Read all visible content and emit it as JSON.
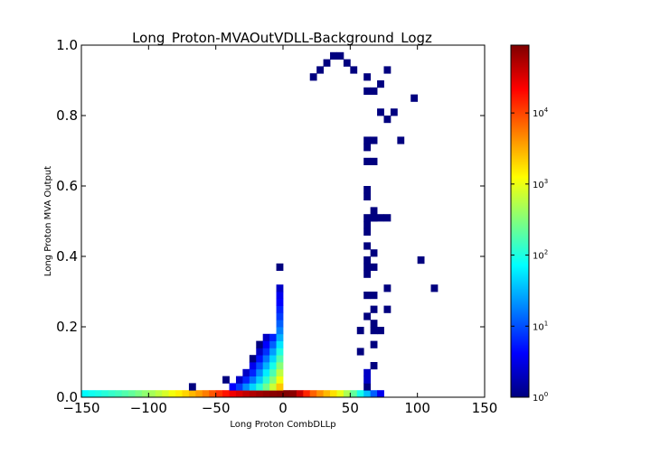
{
  "chart_data": {
    "type": "heatmap",
    "title": "Long_Proton-MVAOutVDLL-Background_Logz",
    "xlabel": "Long Proton CombDLLp",
    "ylabel": "Long Proton MVA Output",
    "xlim": [
      -150,
      150
    ],
    "ylim": [
      0,
      1.0
    ],
    "x_ticks": [
      "−150",
      "−100",
      "−50",
      "0",
      "50",
      "100",
      "150"
    ],
    "y_ticks": [
      "0.0",
      "0.2",
      "0.4",
      "0.6",
      "0.8",
      "1.0"
    ],
    "colorscale": "jet",
    "zscale": "log",
    "zlim": [
      1,
      90000
    ],
    "colorbar_ticks": [
      {
        "base": "10",
        "exp": "0",
        "value": 1
      },
      {
        "base": "10",
        "exp": "1",
        "value": 10
      },
      {
        "base": "10",
        "exp": "2",
        "value": 100
      },
      {
        "base": "10",
        "exp": "3",
        "value": 1000
      },
      {
        "base": "10",
        "exp": "4",
        "value": 10000
      }
    ],
    "bins": {
      "x_width": 5,
      "y_width": 0.02
    },
    "cells": [
      [
        -150,
        0,
        70
      ],
      [
        -145,
        0,
        85
      ],
      [
        -140,
        0,
        95
      ],
      [
        -135,
        0,
        110
      ],
      [
        -130,
        0,
        130
      ],
      [
        -125,
        0,
        150
      ],
      [
        -120,
        0,
        180
      ],
      [
        -115,
        0,
        220
      ],
      [
        -110,
        0,
        280
      ],
      [
        -105,
        0,
        360
      ],
      [
        -100,
        0,
        460
      ],
      [
        -95,
        0,
        600
      ],
      [
        -90,
        0,
        800
      ],
      [
        -85,
        0,
        1100
      ],
      [
        -80,
        0,
        1500
      ],
      [
        -75,
        0,
        2100
      ],
      [
        -70,
        0,
        3000
      ],
      [
        -65,
        0,
        4200
      ],
      [
        -60,
        0,
        6000
      ],
      [
        -55,
        0,
        9000
      ],
      [
        -50,
        0,
        13000
      ],
      [
        -45,
        0,
        18000
      ],
      [
        -40,
        0,
        25000
      ],
      [
        -35,
        0,
        33000
      ],
      [
        -30,
        0,
        42000
      ],
      [
        -25,
        0,
        52000
      ],
      [
        -20,
        0,
        62000
      ],
      [
        -15,
        0,
        72000
      ],
      [
        -10,
        0,
        80000
      ],
      [
        -5,
        0,
        85000
      ],
      [
        0,
        0,
        88000
      ],
      [
        5,
        0,
        80000
      ],
      [
        10,
        0,
        40000
      ],
      [
        15,
        0,
        15000
      ],
      [
        20,
        0,
        8000
      ],
      [
        25,
        0,
        5000
      ],
      [
        30,
        0,
        3000
      ],
      [
        35,
        0,
        1800
      ],
      [
        40,
        0,
        1000
      ],
      [
        45,
        0,
        500
      ],
      [
        50,
        0,
        220
      ],
      [
        55,
        0,
        90
      ],
      [
        60,
        0,
        35
      ],
      [
        65,
        0,
        12
      ],
      [
        70,
        0,
        3
      ],
      [
        -70,
        0.02,
        1
      ],
      [
        -45,
        0.04,
        1
      ],
      [
        -40,
        0.02,
        4
      ],
      [
        -35,
        0.02,
        8
      ],
      [
        -35,
        0.04,
        2
      ],
      [
        -30,
        0.02,
        20
      ],
      [
        -30,
        0.04,
        6
      ],
      [
        -30,
        0.06,
        2
      ],
      [
        -25,
        0.02,
        45
      ],
      [
        -25,
        0.04,
        15
      ],
      [
        -25,
        0.06,
        6
      ],
      [
        -25,
        0.08,
        3
      ],
      [
        -25,
        0.1,
        1
      ],
      [
        -20,
        0.02,
        110
      ],
      [
        -20,
        0.04,
        40
      ],
      [
        -20,
        0.06,
        20
      ],
      [
        -20,
        0.08,
        10
      ],
      [
        -20,
        0.1,
        5
      ],
      [
        -20,
        0.12,
        2
      ],
      [
        -20,
        0.14,
        1
      ],
      [
        -15,
        0.02,
        260
      ],
      [
        -15,
        0.04,
        120
      ],
      [
        -15,
        0.06,
        60
      ],
      [
        -15,
        0.08,
        30
      ],
      [
        -15,
        0.1,
        15
      ],
      [
        -15,
        0.12,
        7
      ],
      [
        -15,
        0.14,
        4
      ],
      [
        -15,
        0.16,
        2
      ],
      [
        -10,
        0.02,
        700
      ],
      [
        -10,
        0.04,
        320
      ],
      [
        -10,
        0.06,
        170
      ],
      [
        -10,
        0.08,
        90
      ],
      [
        -10,
        0.1,
        45
      ],
      [
        -10,
        0.12,
        24
      ],
      [
        -10,
        0.14,
        12
      ],
      [
        -10,
        0.16,
        6
      ],
      [
        -5,
        0.02,
        2500
      ],
      [
        -5,
        0.04,
        1100
      ],
      [
        -5,
        0.06,
        600
      ],
      [
        -5,
        0.08,
        330
      ],
      [
        -5,
        0.1,
        180
      ],
      [
        -5,
        0.12,
        100
      ],
      [
        -5,
        0.14,
        55
      ],
      [
        -5,
        0.16,
        30
      ],
      [
        -5,
        0.18,
        18
      ],
      [
        -5,
        0.2,
        12
      ],
      [
        -5,
        0.22,
        8
      ],
      [
        -5,
        0.24,
        6
      ],
      [
        -5,
        0.26,
        4
      ],
      [
        -5,
        0.28,
        3
      ],
      [
        -5,
        0.3,
        2
      ],
      [
        -5,
        0.36,
        1
      ],
      [
        60,
        0.02,
        1
      ],
      [
        60,
        0.04,
        2
      ],
      [
        60,
        0.06,
        2
      ],
      [
        65,
        0.08,
        1
      ],
      [
        65,
        0.14,
        1
      ],
      [
        65,
        0.18,
        1
      ],
      [
        70,
        0.18,
        1
      ],
      [
        65,
        0.2,
        1
      ],
      [
        60,
        0.22,
        1
      ],
      [
        65,
        0.24,
        1
      ],
      [
        75,
        0.24,
        1
      ],
      [
        60,
        0.28,
        1
      ],
      [
        75,
        0.3,
        1
      ],
      [
        65,
        0.28,
        1
      ],
      [
        60,
        0.34,
        1
      ],
      [
        60,
        0.36,
        1
      ],
      [
        65,
        0.36,
        1
      ],
      [
        60,
        0.38,
        1
      ],
      [
        65,
        0.4,
        1
      ],
      [
        60,
        0.42,
        1
      ],
      [
        60,
        0.46,
        1
      ],
      [
        60,
        0.48,
        1
      ],
      [
        60,
        0.5,
        1
      ],
      [
        65,
        0.5,
        1
      ],
      [
        65,
        0.5,
        1
      ],
      [
        70,
        0.5,
        1
      ],
      [
        75,
        0.5,
        1
      ],
      [
        65,
        0.52,
        1
      ],
      [
        60,
        0.56,
        1
      ],
      [
        60,
        0.58,
        1
      ],
      [
        60,
        0.66,
        1
      ],
      [
        60,
        0.7,
        1
      ],
      [
        60,
        0.72,
        1
      ],
      [
        65,
        0.72,
        1
      ],
      [
        65,
        0.66,
        1
      ],
      [
        70,
        0.8,
        1
      ],
      [
        75,
        0.78,
        1
      ],
      [
        80,
        0.8,
        1
      ],
      [
        85,
        0.72,
        1
      ],
      [
        95,
        0.84,
        1
      ],
      [
        75,
        0.92,
        1
      ],
      [
        60,
        0.86,
        1
      ],
      [
        65,
        0.86,
        1
      ],
      [
        70,
        0.88,
        1
      ],
      [
        60,
        0.9,
        1
      ],
      [
        50,
        0.92,
        1
      ],
      [
        45,
        0.94,
        1
      ],
      [
        40,
        0.96,
        1
      ],
      [
        35,
        0.96,
        1
      ],
      [
        30,
        0.94,
        1
      ],
      [
        25,
        0.92,
        1
      ],
      [
        20,
        0.9,
        1
      ],
      [
        100,
        0.38,
        1
      ],
      [
        110,
        0.3,
        1
      ],
      [
        55,
        0.18,
        1
      ],
      [
        55,
        0.12,
        1
      ]
    ]
  }
}
